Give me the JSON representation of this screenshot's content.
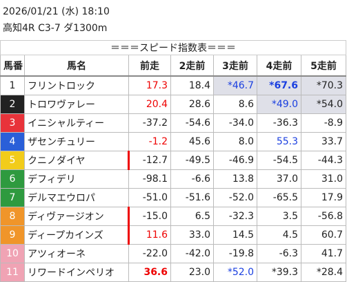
{
  "header": {
    "datetime": "2026/01/21 (水) 18:10",
    "race": "高知4R C3-7 ダ1300m"
  },
  "table": {
    "title": "＝＝＝スピード指数表＝＝＝",
    "columns": [
      "馬番",
      "馬名",
      "前走",
      "2走前",
      "3走前",
      "4走前",
      "5走前"
    ],
    "rows": [
      [
        "1",
        "フリントロック",
        "17.3",
        "18.4",
        "*46.7",
        "*67.6",
        "*70.3"
      ],
      [
        "2",
        "トロワヴァレー",
        "20.4",
        "28.6",
        "8.6",
        "*49.0",
        "*54.0"
      ],
      [
        "3",
        "イニシャルティー",
        "-37.2",
        "-54.6",
        "-34.0",
        "-36.3",
        "-8.9"
      ],
      [
        "4",
        "ザセンチュリー",
        "-1.2",
        "45.6",
        "8.0",
        "55.3",
        "33.7"
      ],
      [
        "5",
        "クニノダイヤ",
        "-12.7",
        "-49.5",
        "-46.9",
        "-54.5",
        "-44.3"
      ],
      [
        "6",
        "デフィデリ",
        "-98.1",
        "-6.6",
        "13.8",
        "37.0",
        "31.0"
      ],
      [
        "7",
        "デルマエウロパ",
        "-51.0",
        "-51.6",
        "-52.0",
        "-65.5",
        "17.9"
      ],
      [
        "8",
        "ディヴァージオン",
        "-15.0",
        "6.5",
        "-32.3",
        "3.5",
        "-56.8"
      ],
      [
        "9",
        "ディープカインズ",
        "11.6",
        "33.0",
        "14.5",
        "4.5",
        "60.7"
      ],
      [
        "10",
        "アツィオーネ",
        "-22.0",
        "-42.0",
        "-19.8",
        "-6.3",
        "41.7"
      ],
      [
        "11",
        "リワードインペリオ",
        "36.6",
        "23.0",
        "*52.0",
        "*39.3",
        "*28.4"
      ]
    ]
  }
}
